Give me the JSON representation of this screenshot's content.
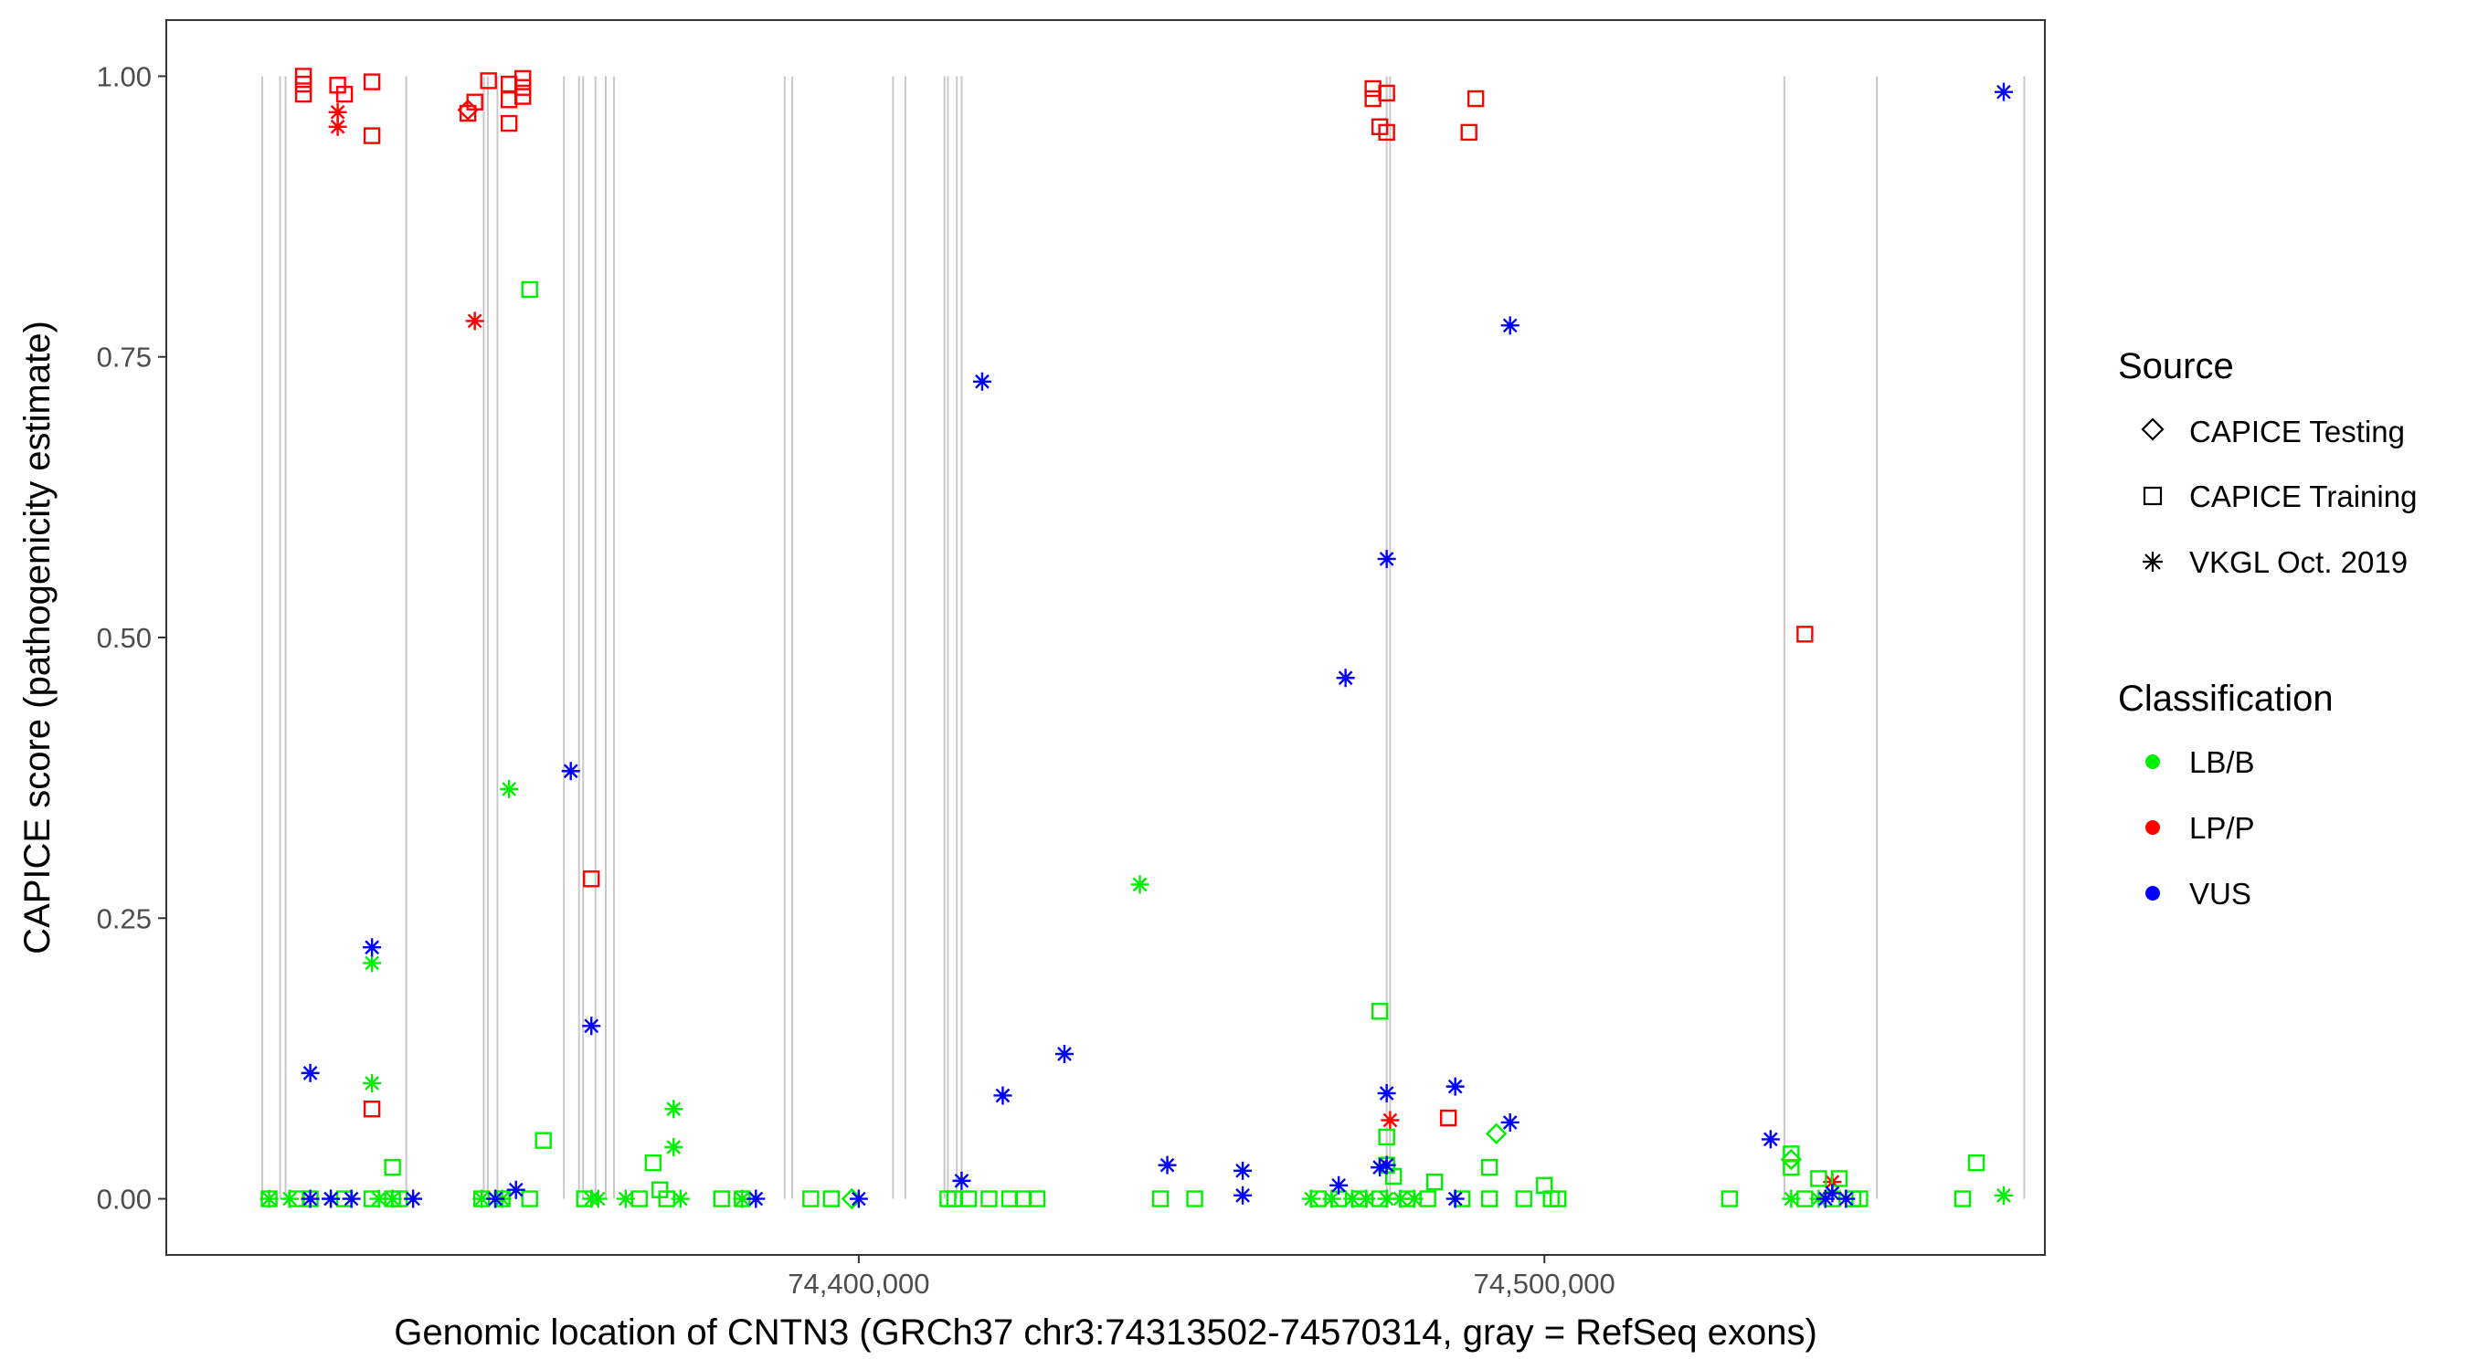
{
  "chart_data": {
    "type": "scatter",
    "xlabel": "Genomic location of CNTN3 (GRCh37 chr3:74313502-74570314, gray = RefSeq exons)",
    "ylabel": "CAPICE score (pathogenicity estimate)",
    "xlim": [
      74299000,
      74573000
    ],
    "ylim": [
      -0.05,
      1.05
    ],
    "x_ticks": [
      74400000,
      74500000
    ],
    "x_tick_labels": [
      "74,400,000",
      "74,500,000"
    ],
    "y_ticks": [
      0,
      0.25,
      0.5,
      0.75,
      1.0
    ],
    "y_tick_labels": [
      "0.00",
      "0.25",
      "0.50",
      "0.75",
      "1.00"
    ],
    "grid": false,
    "legend_position": "right",
    "legend": {
      "source_title": "Source",
      "source_items": [
        {
          "label": "CAPICE Testing",
          "shape": "diamond"
        },
        {
          "label": "CAPICE Training",
          "shape": "square"
        },
        {
          "label": "VKGL Oct. 2019",
          "shape": "asterisk"
        }
      ],
      "class_title": "Classification",
      "class_items": [
        {
          "label": "LB/B",
          "color": "#00ee00"
        },
        {
          "label": "LP/P",
          "color": "#ff0000"
        },
        {
          "label": "VUS",
          "color": "#0000ff"
        }
      ]
    },
    "exons": [
      74313000,
      74315600,
      74316400,
      74334000,
      74345300,
      74345900,
      74347300,
      74357000,
      74359200,
      74359800,
      74361600,
      74363100,
      74364300,
      74389200,
      74390300,
      74405000,
      74406800,
      74412500,
      74413000,
      74414300,
      74415000,
      74477000,
      74477500,
      74535000,
      74548500,
      74570000
    ],
    "series": [
      {
        "source": "CAPICE Training",
        "classification": "LP/P",
        "points": [
          [
            74319000,
            1.0
          ],
          [
            74319000,
            0.993
          ],
          [
            74319000,
            0.984
          ],
          [
            74324000,
            0.992
          ],
          [
            74325000,
            0.984
          ],
          [
            74329000,
            0.995
          ],
          [
            74329000,
            0.947
          ],
          [
            74343000,
            0.967
          ],
          [
            74344000,
            0.977
          ],
          [
            74346000,
            0.996
          ],
          [
            74349000,
            0.993
          ],
          [
            74349000,
            0.979
          ],
          [
            74349000,
            0.958
          ],
          [
            74351000,
            0.998
          ],
          [
            74351000,
            0.99
          ],
          [
            74351000,
            0.982
          ],
          [
            74329000,
            0.08
          ],
          [
            74361000,
            0.285
          ],
          [
            74475000,
            0.989
          ],
          [
            74475000,
            0.98
          ],
          [
            74476000,
            0.955
          ],
          [
            74477000,
            0.985
          ],
          [
            74477000,
            0.95
          ],
          [
            74490000,
            0.98
          ],
          [
            74489000,
            0.95
          ],
          [
            74486000,
            0.072
          ],
          [
            74538000,
            0.503
          ]
        ]
      },
      {
        "source": "CAPICE Testing",
        "classification": "LP/P",
        "points": [
          [
            74343000,
            0.97
          ]
        ]
      },
      {
        "source": "VKGL Oct. 2019",
        "classification": "LP/P",
        "points": [
          [
            74324000,
            0.968
          ],
          [
            74324000,
            0.955
          ],
          [
            74344000,
            0.782
          ],
          [
            74477500,
            0.07
          ],
          [
            74542000,
            0.015
          ]
        ]
      },
      {
        "source": "CAPICE Training",
        "classification": "LB/B",
        "points": [
          [
            74352000,
            0.81
          ],
          [
            74354000,
            0.052
          ],
          [
            74332000,
            0.028
          ],
          [
            74370000,
            0.032
          ],
          [
            74371000,
            0.008
          ],
          [
            74476000,
            0.167
          ],
          [
            74477000,
            0.055
          ],
          [
            74477000,
            0.03
          ],
          [
            74478000,
            0.02
          ],
          [
            74492000,
            0.028
          ],
          [
            74500000,
            0.012
          ],
          [
            74536000,
            0.04
          ],
          [
            74536000,
            0.028
          ],
          [
            74563000,
            0.032
          ],
          [
            74540000,
            0.018
          ],
          [
            74543000,
            0.018
          ],
          [
            74484000,
            0.015
          ],
          [
            74314000,
            0.0
          ],
          [
            74318000,
            0.0
          ],
          [
            74320000,
            0.0
          ],
          [
            74325000,
            0.0
          ],
          [
            74329000,
            0.0
          ],
          [
            74332000,
            0.0
          ],
          [
            74333000,
            0.0
          ],
          [
            74345000,
            0.0
          ],
          [
            74348000,
            0.0
          ],
          [
            74352000,
            0.0
          ],
          [
            74360000,
            0.0
          ],
          [
            74368000,
            0.0
          ],
          [
            74372000,
            0.0
          ],
          [
            74380000,
            0.0
          ],
          [
            74383000,
            0.0
          ],
          [
            74393000,
            0.0
          ],
          [
            74396000,
            0.0
          ],
          [
            74413000,
            0.0
          ],
          [
            74414000,
            0.0
          ],
          [
            74416000,
            0.0
          ],
          [
            74419000,
            0.0
          ],
          [
            74422000,
            0.0
          ],
          [
            74424000,
            0.0
          ],
          [
            74426000,
            0.0
          ],
          [
            74444000,
            0.0
          ],
          [
            74449000,
            0.0
          ],
          [
            74467000,
            0.0
          ],
          [
            74470000,
            0.0
          ],
          [
            74473000,
            0.0
          ],
          [
            74476000,
            0.0
          ],
          [
            74480000,
            0.0
          ],
          [
            74483000,
            0.0
          ],
          [
            74488000,
            0.0
          ],
          [
            74492000,
            0.0
          ],
          [
            74497000,
            0.0
          ],
          [
            74501000,
            0.0
          ],
          [
            74502000,
            0.0
          ],
          [
            74527000,
            0.0
          ],
          [
            74538000,
            0.0
          ],
          [
            74542000,
            0.0
          ],
          [
            74545000,
            0.0
          ],
          [
            74546000,
            0.0
          ],
          [
            74561000,
            0.0
          ]
        ]
      },
      {
        "source": "CAPICE Testing",
        "classification": "LB/B",
        "points": [
          [
            74493000,
            0.058
          ],
          [
            74536000,
            0.035
          ],
          [
            74399000,
            0.0
          ]
        ]
      },
      {
        "source": "VKGL Oct. 2019",
        "classification": "LB/B",
        "points": [
          [
            74349000,
            0.365
          ],
          [
            74441000,
            0.28
          ],
          [
            74329000,
            0.21
          ],
          [
            74329000,
            0.103
          ],
          [
            74373000,
            0.08
          ],
          [
            74373000,
            0.046
          ],
          [
            74314000,
            0.0
          ],
          [
            74317000,
            0.0
          ],
          [
            74323000,
            0.0
          ],
          [
            74330000,
            0.0
          ],
          [
            74332000,
            0.0
          ],
          [
            74345000,
            0.0
          ],
          [
            74348000,
            0.0
          ],
          [
            74361000,
            0.0
          ],
          [
            74362000,
            0.0
          ],
          [
            74366000,
            0.0
          ],
          [
            74374000,
            0.0
          ],
          [
            74383000,
            0.0
          ],
          [
            74466000,
            0.0
          ],
          [
            74469000,
            0.0
          ],
          [
            74472000,
            0.0
          ],
          [
            74474000,
            0.0
          ],
          [
            74477000,
            0.0
          ],
          [
            74479000,
            0.0
          ],
          [
            74481000,
            0.0
          ],
          [
            74536000,
            0.0
          ],
          [
            74540000,
            0.0
          ],
          [
            74567000,
            0.003
          ]
        ]
      },
      {
        "source": "VKGL Oct. 2019",
        "classification": "VUS",
        "points": [
          [
            74567000,
            0.986
          ],
          [
            74495000,
            0.778
          ],
          [
            74418000,
            0.728
          ],
          [
            74477000,
            0.57
          ],
          [
            74471000,
            0.464
          ],
          [
            74358000,
            0.381
          ],
          [
            74329000,
            0.224
          ],
          [
            74361000,
            0.154
          ],
          [
            74430000,
            0.129
          ],
          [
            74320000,
            0.112
          ],
          [
            74477000,
            0.094
          ],
          [
            74487000,
            0.1
          ],
          [
            74421000,
            0.092
          ],
          [
            74495000,
            0.068
          ],
          [
            74533000,
            0.053
          ],
          [
            74415000,
            0.016
          ],
          [
            74445000,
            0.03
          ],
          [
            74456000,
            0.025
          ],
          [
            74456000,
            0.003
          ],
          [
            74470000,
            0.012
          ],
          [
            74476000,
            0.028
          ],
          [
            74477000,
            0.03
          ],
          [
            74350000,
            0.008
          ],
          [
            74542000,
            0.005
          ],
          [
            74320000,
            0.0
          ],
          [
            74323000,
            0.0
          ],
          [
            74326000,
            0.0
          ],
          [
            74335000,
            0.0
          ],
          [
            74347000,
            0.0
          ],
          [
            74385000,
            0.0
          ],
          [
            74400000,
            0.0
          ],
          [
            74487000,
            0.0
          ],
          [
            74541000,
            0.0
          ],
          [
            74544000,
            0.0
          ]
        ]
      }
    ]
  }
}
